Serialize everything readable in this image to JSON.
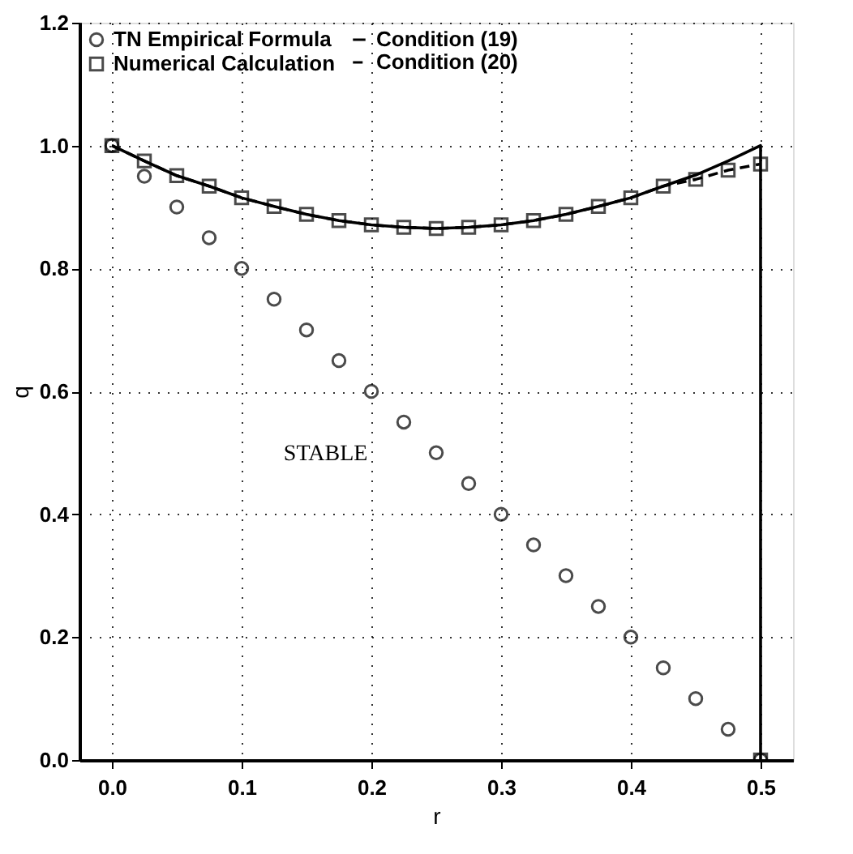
{
  "chart_data": {
    "type": "scatter",
    "xlabel": "r",
    "ylabel": "q",
    "xlim": [
      -0.025,
      0.525
    ],
    "ylim": [
      0,
      1.2
    ],
    "xticks": [
      {
        "value": 0,
        "label": "0.0"
      },
      {
        "value": 0.1,
        "label": "0.1"
      },
      {
        "value": 0.2,
        "label": "0.2"
      },
      {
        "value": 0.3,
        "label": "0.3"
      },
      {
        "value": 0.4,
        "label": "0.4"
      },
      {
        "value": 0.5,
        "label": "0.5"
      }
    ],
    "yticks": [
      {
        "value": 0,
        "label": "0.0"
      },
      {
        "value": 0.2,
        "label": "0.2"
      },
      {
        "value": 0.4,
        "label": "0.4"
      },
      {
        "value": 0.6,
        "label": "0.6"
      },
      {
        "value": 0.8,
        "label": "0.8"
      },
      {
        "value": 1.0,
        "label": "1.0"
      },
      {
        "value": 1.2,
        "label": "1.2"
      }
    ],
    "grid": true,
    "legend": "top left",
    "annotations": [
      "STABLE"
    ],
    "series": [
      {
        "name": "TN Empirical Formula",
        "marker": "circle",
        "color": "#000000",
        "x": [
          0,
          0.025,
          0.05,
          0.075,
          0.1,
          0.125,
          0.15,
          0.175,
          0.2,
          0.225,
          0.25,
          0.275,
          0.3,
          0.325,
          0.35,
          0.375,
          0.4,
          0.425,
          0.45,
          0.475,
          0.5
        ],
        "values": [
          1.0,
          0.95,
          0.9,
          0.85,
          0.8,
          0.75,
          0.7,
          0.65,
          0.6,
          0.55,
          0.5,
          0.45,
          0.4,
          0.35,
          0.3,
          0.25,
          0.2,
          0.15,
          0.1,
          0.05,
          0.0
        ]
      },
      {
        "name": "Numerical Calculation",
        "type": "scatter",
        "marker": "square",
        "color": "#000000",
        "x": [
          0,
          0.025,
          0.05,
          0.075,
          0.1,
          0.125,
          0.15,
          0.175,
          0.2,
          0.225,
          0.25,
          0.275,
          0.3,
          0.325,
          0.35,
          0.375,
          0.4,
          0.425,
          0.45,
          0.475,
          0.5,
          0.5
        ],
        "values": [
          1.0,
          0.975,
          0.951,
          0.934,
          0.915,
          0.901,
          0.888,
          0.878,
          0.871,
          0.867,
          0.865,
          0.867,
          0.871,
          0.878,
          0.888,
          0.901,
          0.915,
          0.934,
          0.945,
          0.96,
          0.97,
          0.0
        ]
      },
      {
        "name": "Condition (19)",
        "type": "line",
        "line_style": "solid",
        "color": "#000000",
        "x": [
          0,
          0.025,
          0.05,
          0.075,
          0.1,
          0.125,
          0.15,
          0.175,
          0.2,
          0.225,
          0.25,
          0.275,
          0.3,
          0.325,
          0.35,
          0.375,
          0.4,
          0.425,
          0.45,
          0.475,
          0.5,
          0.5
        ],
        "values": [
          1.0,
          0.975,
          0.951,
          0.934,
          0.915,
          0.901,
          0.888,
          0.878,
          0.871,
          0.867,
          0.865,
          0.867,
          0.871,
          0.878,
          0.888,
          0.901,
          0.915,
          0.934,
          0.952,
          0.975,
          1.0,
          0.0
        ]
      },
      {
        "name": "Condition (20)",
        "type": "line",
        "line_style": "dashed",
        "color": "#000000",
        "x": [
          0,
          0.025,
          0.05,
          0.075,
          0.1,
          0.125,
          0.15,
          0.175,
          0.2,
          0.225,
          0.25,
          0.275,
          0.3,
          0.325,
          0.35,
          0.375,
          0.4,
          0.425,
          0.45,
          0.475,
          0.5
        ],
        "values": [
          1.0,
          0.975,
          0.951,
          0.934,
          0.915,
          0.901,
          0.888,
          0.878,
          0.871,
          0.867,
          0.865,
          0.867,
          0.871,
          0.878,
          0.888,
          0.901,
          0.915,
          0.934,
          0.945,
          0.96,
          0.97
        ]
      }
    ]
  }
}
